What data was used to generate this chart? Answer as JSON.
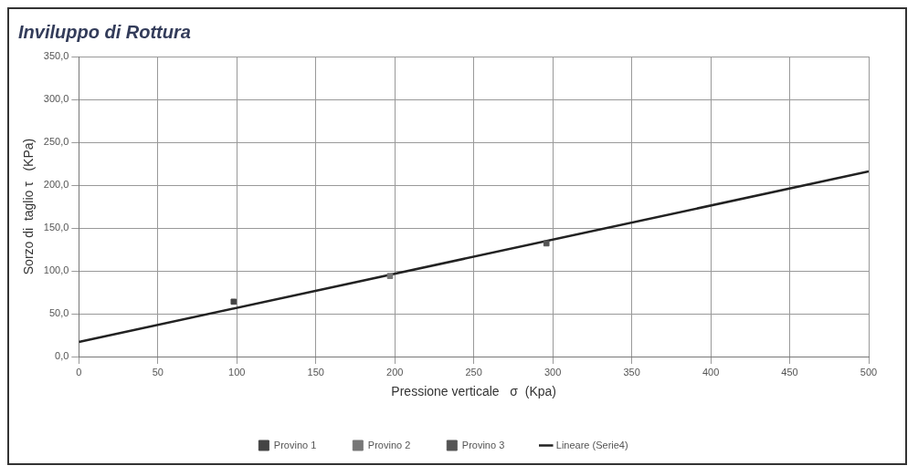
{
  "chart_data": {
    "type": "scatter",
    "title": "Inviluppo di Rottura",
    "xlabel": "Pressione verticale   σ  (Kpa)",
    "ylabel": "Sorzo di  taglio τ   (KPa)",
    "series": [
      {
        "name": "Provino 1",
        "color": "#444444",
        "x": [
          98
        ],
        "values": [
          64
        ],
        "marker": "square"
      },
      {
        "name": "Provino 2",
        "color": "#777777",
        "x": [
          197
        ],
        "values": [
          94
        ],
        "marker": "square"
      },
      {
        "name": "Provino 3",
        "color": "#555555",
        "x": [
          296
        ],
        "values": [
          132
        ],
        "marker": "square"
      },
      {
        "name": "Lineare (Serie4)",
        "type": "line",
        "color": "#222222",
        "x": [
          0,
          500
        ],
        "values": [
          17,
          216
        ],
        "marker": "none"
      }
    ],
    "xlim": [
      0,
      500
    ],
    "xticks": [
      0,
      50,
      100,
      150,
      200,
      250,
      300,
      350,
      400,
      450,
      500
    ],
    "ylim": [
      0,
      350
    ],
    "yticks": [
      {
        "value": 0,
        "label": "0,0"
      },
      {
        "value": 50,
        "label": "50,0"
      },
      {
        "value": 100,
        "label": "100,0"
      },
      {
        "value": 150,
        "label": "150,0"
      },
      {
        "value": 200,
        "label": "200,0"
      },
      {
        "value": 250,
        "label": "250,0"
      },
      {
        "value": 300,
        "label": "300,0"
      },
      {
        "value": 350,
        "label": "350,0"
      }
    ],
    "grid": true,
    "legend": "bottom"
  }
}
